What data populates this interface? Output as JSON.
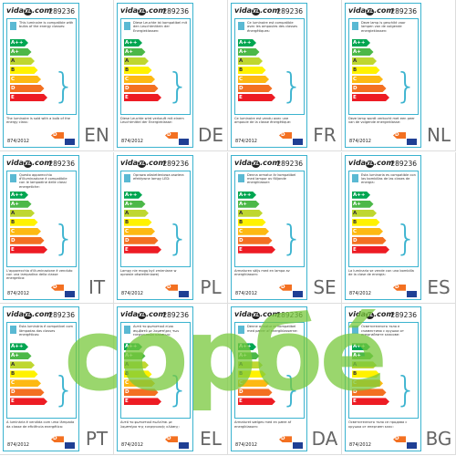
{
  "brand": {
    "prefix": "vida",
    "mark": "XL",
    "suffix": ".com"
  },
  "code": "289236",
  "classes": [
    "A++",
    "A+",
    "A",
    "B",
    "C",
    "D",
    "E"
  ],
  "bulb_class": "D",
  "regulation": "874/2012",
  "watermark": "copбé",
  "labels": [
    {
      "lang": "EN",
      "top": "This luminaire is compatible with bulbs of the energy classes:",
      "bottom": "The luminaire is sold with a bulb of the energy class:"
    },
    {
      "lang": "DE",
      "top": "Diese Leuchte ist kompatibel mit den Leuchtmitteln der Energieklassen:",
      "bottom": "Diese Leuchte wird verkauft mit einem Leuchtmittel der Energieklasse:"
    },
    {
      "lang": "FR",
      "top": "Ce luminaire est compatible avec les ampoules des classes énergétiques:",
      "bottom": "Ce luminaire est vendu avec une ampoule de la classe énergétique:"
    },
    {
      "lang": "NL",
      "top": "Deze lamp is geschikt voor lampen van de volgende energieklassen:",
      "bottom": "Deze lamp wordt verkocht met een peer van de volgende energieklasse:"
    },
    {
      "lang": "IT",
      "top": "Questo apparecchio d'illuminazione è compatibile con le lampadine delle classi energetiche:",
      "bottom": "L'apparecchio d'illuminazione è venduto con una lampadina della classe energetica:"
    },
    {
      "lang": "PL",
      "top": "Oprawa oświetleniowa zawiera efektywne lampy LED:",
      "bottom": "Lampy nie mogą być zmieniane w oprawie oświetleniowej"
    },
    {
      "lang": "SE",
      "top": "Denna armatur är kompatibel med lampor av följande energiklasser:",
      "bottom": "Armaturen säljs med en lampa av energiklassen:"
    },
    {
      "lang": "ES",
      "top": "Esta luminaria es compatible con las bombillas de las clases de energía:",
      "bottom": "La luminaria se vende con una bombilla de la clase de energía:"
    },
    {
      "lang": "PT",
      "top": "Esta luminária é compatível com lâmpadas das classes energéticas:",
      "bottom": "A luminária é vendida com uma lâmpada da classe de eficiência energética:"
    },
    {
      "lang": "EL",
      "top": "Αυτό το φωτιστικό είναι συμβατό με λαμπτήρες των ενεργειακών κλάσεων:",
      "bottom": "Αυτό το φωτιστικό πωλείται με λαμπτήρα της ενεργειακής κλάσης:"
    },
    {
      "lang": "DA",
      "top": "Denne armatur er kompatibel med pærer af energiklasserne:",
      "bottom": "Armaturet sælges med en pære af energiklassen:"
    },
    {
      "lang": "BG",
      "top": "Осветителното тяло е съвместимо с крушки от енергийните класове:",
      "bottom": "Осветителното тяло се продава с крушка от енергиен клас:"
    }
  ]
}
